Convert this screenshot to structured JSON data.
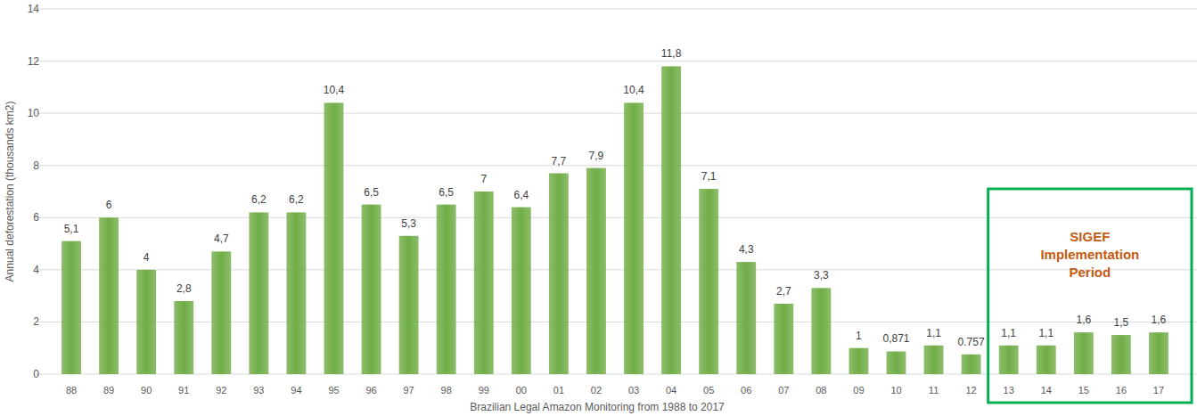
{
  "chart_data": {
    "type": "bar",
    "y_label": "Annual deforestation (thousands km2)",
    "x_label": "Brazilian Legal Amazon Monitoring from 1988 to 2017",
    "categories": [
      "88",
      "89",
      "90",
      "91",
      "92",
      "93",
      "94",
      "95",
      "96",
      "97",
      "98",
      "99",
      "00",
      "01",
      "02",
      "03",
      "04",
      "05",
      "06",
      "07",
      "08",
      "09",
      "10",
      "11",
      "12",
      "13",
      "14",
      "15",
      "16",
      "17"
    ],
    "values": [
      5.1,
      6,
      4,
      2.8,
      4.7,
      6.2,
      6.2,
      10.4,
      6.5,
      5.3,
      6.5,
      7,
      6.4,
      7.7,
      7.9,
      10.4,
      11.8,
      7.1,
      4.3,
      2.7,
      3.3,
      1,
      0.871,
      1.1,
      0.757,
      1.1,
      1.1,
      1.6,
      1.5,
      1.6
    ],
    "value_labels": [
      "5,1",
      "6",
      "4",
      "2,8",
      "4,7",
      "6,2",
      "6,2",
      "10,4",
      "6,5",
      "5,3",
      "6,5",
      "7",
      "6,4",
      "7,7",
      "7,9",
      "10,4",
      "11,8",
      "7,1",
      "4,3",
      "2,7",
      "3,3",
      "1",
      "0,871",
      "1,1",
      "0.757",
      "1,1",
      "1,1",
      "1,6",
      "1,5",
      "1,6"
    ],
    "color": "#70ad47",
    "ylim": [
      0,
      14
    ],
    "yticks": [
      0,
      2,
      4,
      6,
      8,
      10,
      12,
      14
    ],
    "grid": true,
    "data_labels": true,
    "annotations": [
      {
        "text": "SIGEF Implementation Period",
        "from": "13",
        "to": "17"
      }
    ]
  }
}
